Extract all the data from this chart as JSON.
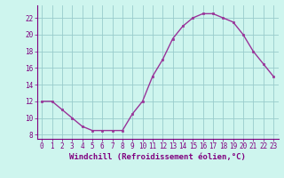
{
  "x": [
    0,
    1,
    2,
    3,
    4,
    5,
    6,
    7,
    8,
    9,
    10,
    11,
    12,
    13,
    14,
    15,
    16,
    17,
    18,
    19,
    20,
    21,
    22,
    23
  ],
  "y": [
    12,
    12,
    11,
    10,
    9,
    8.5,
    8.5,
    8.5,
    8.5,
    10.5,
    12,
    15,
    17,
    19.5,
    21,
    22,
    22.5,
    22.5,
    22,
    21.5,
    20,
    18,
    16.5,
    15
  ],
  "line_color": "#993399",
  "marker_color": "#993399",
  "bg_color": "#cef5ee",
  "grid_color": "#99cccc",
  "xlabel": "Windchill (Refroidissement éolien,°C)",
  "ylim": [
    7.5,
    23.5
  ],
  "xlim": [
    -0.5,
    23.5
  ],
  "yticks": [
    8,
    10,
    12,
    14,
    16,
    18,
    20,
    22
  ],
  "xticks": [
    0,
    1,
    2,
    3,
    4,
    5,
    6,
    7,
    8,
    9,
    10,
    11,
    12,
    13,
    14,
    15,
    16,
    17,
    18,
    19,
    20,
    21,
    22,
    23
  ],
  "label_color": "#800080",
  "tick_fontsize": 5.5,
  "xlabel_fontsize": 6.5
}
